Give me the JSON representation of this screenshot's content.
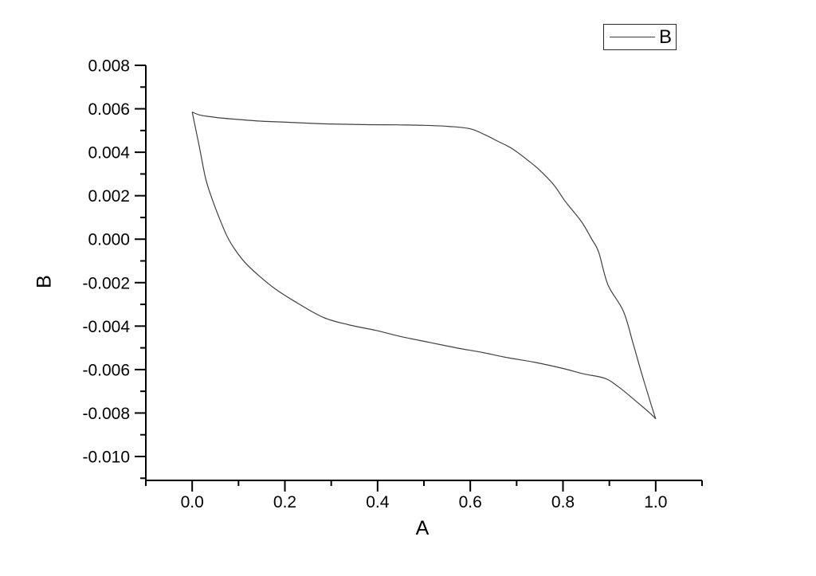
{
  "page": {
    "background": "#ffffff"
  },
  "chart_data": {
    "type": "line",
    "title": "",
    "xlabel": "A",
    "ylabel": "B",
    "grid": false,
    "frame": "left-bottom-axes-only",
    "axis_color": "#000000",
    "curve_color": "#404040",
    "legend": {
      "position": "top-right",
      "entries": [
        {
          "label": "B",
          "line_color": "#404040"
        }
      ]
    },
    "x_axis": {
      "range": [
        -0.1,
        1.1
      ],
      "major_ticks": [
        {
          "value": 0.0,
          "label": "0.0"
        },
        {
          "value": 0.2,
          "label": "0.2"
        },
        {
          "value": 0.4,
          "label": "0.4"
        },
        {
          "value": 0.6,
          "label": "0.6"
        },
        {
          "value": 0.8,
          "label": "0.8"
        },
        {
          "value": 1.0,
          "label": "1.0"
        }
      ],
      "minor_tick_values": [
        -0.1,
        0.1,
        0.3,
        0.5,
        0.7,
        0.9,
        1.1
      ]
    },
    "y_axis": {
      "range": [
        -0.0111,
        0.008
      ],
      "major_ticks": [
        {
          "value": 0.008,
          "label": "0.008"
        },
        {
          "value": 0.006,
          "label": "0.006"
        },
        {
          "value": 0.004,
          "label": "0.004"
        },
        {
          "value": 0.002,
          "label": "0.002"
        },
        {
          "value": 0.0,
          "label": "0.000"
        },
        {
          "value": -0.002,
          "label": "-0.002"
        },
        {
          "value": -0.004,
          "label": "-0.004"
        },
        {
          "value": -0.006,
          "label": "-0.006"
        },
        {
          "value": -0.008,
          "label": "-0.008"
        },
        {
          "value": -0.01,
          "label": "-0.010"
        }
      ],
      "minor_tick_values": [
        0.007,
        0.005,
        0.003,
        0.001,
        -0.001,
        -0.003,
        -0.005,
        -0.007,
        -0.009,
        -0.011
      ]
    },
    "series": [
      {
        "name": "B",
        "shape": "closed-hysteresis-loop",
        "forward_branch": [
          [
            0.0,
            0.00585
          ],
          [
            0.015,
            0.00572
          ],
          [
            0.034,
            0.00565
          ],
          [
            0.06,
            0.00558
          ],
          [
            0.093,
            0.00552
          ],
          [
            0.15,
            0.00543
          ],
          [
            0.207,
            0.00538
          ],
          [
            0.27,
            0.00532
          ],
          [
            0.322,
            0.00529
          ],
          [
            0.38,
            0.00527
          ],
          [
            0.44,
            0.00526
          ],
          [
            0.5,
            0.00524
          ],
          [
            0.552,
            0.00519
          ],
          [
            0.6,
            0.00508
          ],
          [
            0.633,
            0.00479
          ],
          [
            0.66,
            0.0045
          ],
          [
            0.69,
            0.00417
          ],
          [
            0.72,
            0.0037
          ],
          [
            0.748,
            0.00321
          ],
          [
            0.78,
            0.0025
          ],
          [
            0.805,
            0.00174
          ],
          [
            0.84,
            0.0008
          ],
          [
            0.862,
            0.0
          ],
          [
            0.877,
            -0.0006
          ],
          [
            0.897,
            -0.0021
          ],
          [
            0.93,
            -0.0033
          ],
          [
            0.95,
            -0.0047
          ],
          [
            0.97,
            -0.0062
          ],
          [
            0.99,
            -0.0076
          ],
          [
            1.0,
            -0.00827
          ]
        ],
        "return_branch": [
          [
            1.0,
            -0.00827
          ],
          [
            0.99,
            -0.00805
          ],
          [
            0.96,
            -0.0075
          ],
          [
            0.92,
            -0.0068
          ],
          [
            0.89,
            -0.0064
          ],
          [
            0.845,
            -0.0062
          ],
          [
            0.8,
            -0.00595
          ],
          [
            0.74,
            -0.00567
          ],
          [
            0.68,
            -0.00545
          ],
          [
            0.63,
            -0.00523
          ],
          [
            0.57,
            -0.005
          ],
          [
            0.512,
            -0.00475
          ],
          [
            0.45,
            -0.00448
          ],
          [
            0.397,
            -0.0042
          ],
          [
            0.34,
            -0.00395
          ],
          [
            0.283,
            -0.0036
          ],
          [
            0.224,
            -0.0029
          ],
          [
            0.18,
            -0.0023
          ],
          [
            0.145,
            -0.0017
          ],
          [
            0.115,
            -0.0011
          ],
          [
            0.093,
            -0.0005
          ],
          [
            0.076,
            0.0001
          ],
          [
            0.058,
            0.001
          ],
          [
            0.043,
            0.00185
          ],
          [
            0.029,
            0.0028
          ],
          [
            0.015,
            0.0043
          ],
          [
            0.0,
            0.00585
          ]
        ]
      }
    ]
  }
}
